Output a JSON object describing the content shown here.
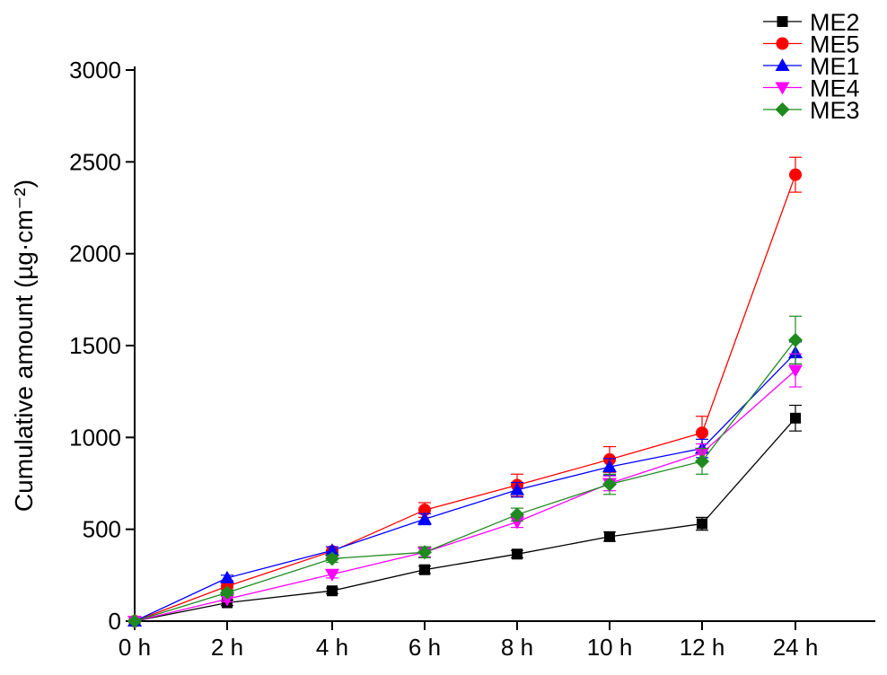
{
  "chart_data": {
    "type": "line",
    "categories": [
      "0 h",
      "2 h",
      "4 h",
      "6 h",
      "8 h",
      "10 h",
      "12 h",
      "24 h"
    ],
    "ylabel": "Cumulative amount (µg·cm⁻²)",
    "xlabel": "",
    "ylim": [
      0,
      3000
    ],
    "yticks": [
      "0",
      "500",
      "1000",
      "1500",
      "2000",
      "2500",
      "3000"
    ],
    "grid": false,
    "legend_position": "top-right",
    "series": [
      {
        "name": "ME2",
        "color": "#000000",
        "marker": "square",
        "values": [
          0,
          100,
          165,
          280,
          365,
          460,
          530,
          1105
        ],
        "errors": [
          0,
          15,
          15,
          20,
          20,
          25,
          35,
          70
        ]
      },
      {
        "name": "ME5",
        "color": "#ff0000",
        "marker": "circle",
        "values": [
          0,
          190,
          380,
          605,
          740,
          880,
          1025,
          2430
        ],
        "errors": [
          0,
          20,
          25,
          40,
          60,
          70,
          90,
          95
        ]
      },
      {
        "name": "ME1",
        "color": "#0000ff",
        "marker": "triangle-up",
        "values": [
          0,
          235,
          385,
          555,
          715,
          840,
          940,
          1460
        ],
        "errors": [
          0,
          15,
          20,
          30,
          40,
          45,
          50,
          60
        ]
      },
      {
        "name": "ME4",
        "color": "#ff00ff",
        "marker": "triangle-down",
        "values": [
          0,
          120,
          255,
          375,
          540,
          750,
          915,
          1365
        ],
        "errors": [
          0,
          15,
          20,
          25,
          30,
          40,
          50,
          90
        ]
      },
      {
        "name": "ME3",
        "color": "#1f8a1f",
        "marker": "diamond",
        "values": [
          0,
          155,
          340,
          375,
          580,
          745,
          870,
          1530
        ],
        "errors": [
          0,
          15,
          20,
          30,
          35,
          55,
          70,
          130
        ]
      }
    ]
  }
}
